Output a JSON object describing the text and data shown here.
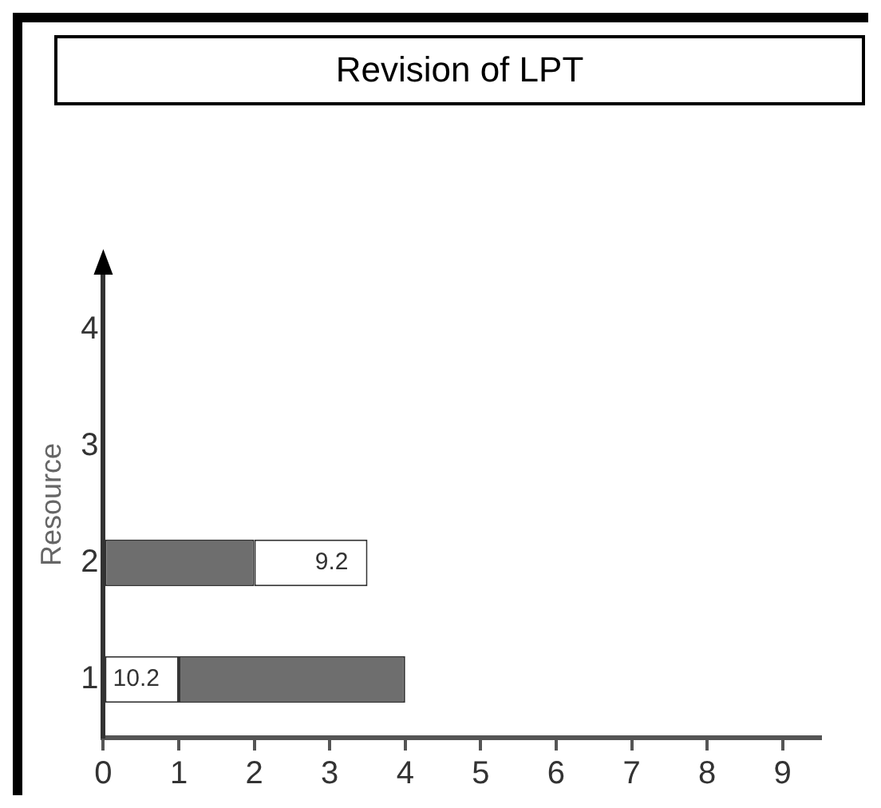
{
  "chart_data": {
    "type": "bar",
    "title": "Revision of LPT",
    "ylabel": "Resource",
    "orientation": "horizontal",
    "categories": [
      "4",
      "3",
      "2",
      "1"
    ],
    "series": [
      {
        "color": "#ffffff",
        "values": [
          null,
          null,
          1.5,
          1
        ],
        "base": [
          null,
          null,
          2,
          0
        ]
      },
      {
        "color": "#6e6e6e",
        "values": [
          null,
          null,
          2,
          3
        ],
        "base": [
          null,
          null,
          0,
          1
        ]
      }
    ],
    "xlim": [
      0,
      9.5
    ],
    "xticks": [
      0,
      1,
      2,
      3,
      4,
      5,
      6,
      7,
      8,
      9
    ],
    "grid": false,
    "legend": false,
    "annotations": [
      {
        "text": "9.2",
        "x": 3.5,
        "y": "2"
      },
      {
        "text": "10.2",
        "x": 1,
        "y": "1"
      }
    ]
  }
}
